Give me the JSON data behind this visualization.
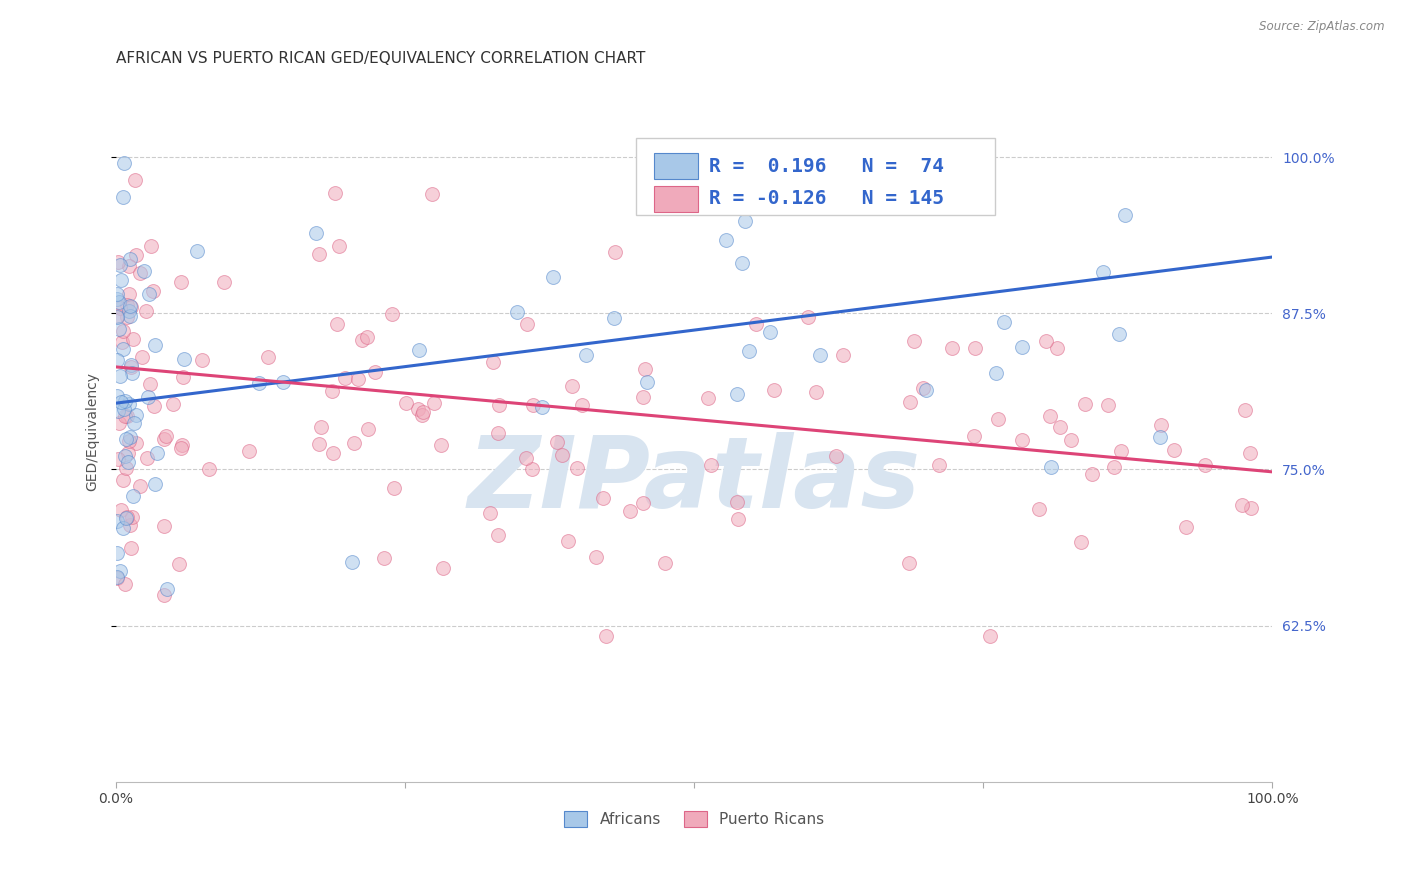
{
  "title": "AFRICAN VS PUERTO RICAN GED/EQUIVALENCY CORRELATION CHART",
  "source": "Source: ZipAtlas.com",
  "ylabel": "GED/Equivalency",
  "y_tick_labels": [
    "62.5%",
    "75.0%",
    "87.5%",
    "100.0%"
  ],
  "y_tick_values": [
    0.625,
    0.75,
    0.875,
    1.0
  ],
  "xlim": [
    0.0,
    1.0
  ],
  "ylim": [
    0.5,
    1.06
  ],
  "african_color": "#a8c8e8",
  "african_edge": "#5588cc",
  "pr_color": "#f0aabb",
  "pr_edge": "#dd6688",
  "blue_line_color": "#3366cc",
  "pink_line_color": "#dd4477",
  "watermark": "ZIPatlas",
  "watermark_color": "#d8e4f0",
  "african_R": 0.196,
  "pr_R": -0.126,
  "african_N": 74,
  "pr_N": 145,
  "dot_size": 100,
  "dot_alpha": 0.55,
  "title_fontsize": 11,
  "axis_label_fontsize": 10,
  "tick_fontsize": 10,
  "legend_fontsize": 14,
  "blue_line_y0": 0.803,
  "blue_line_y1": 0.92,
  "pink_line_y0": 0.832,
  "pink_line_y1": 0.748
}
